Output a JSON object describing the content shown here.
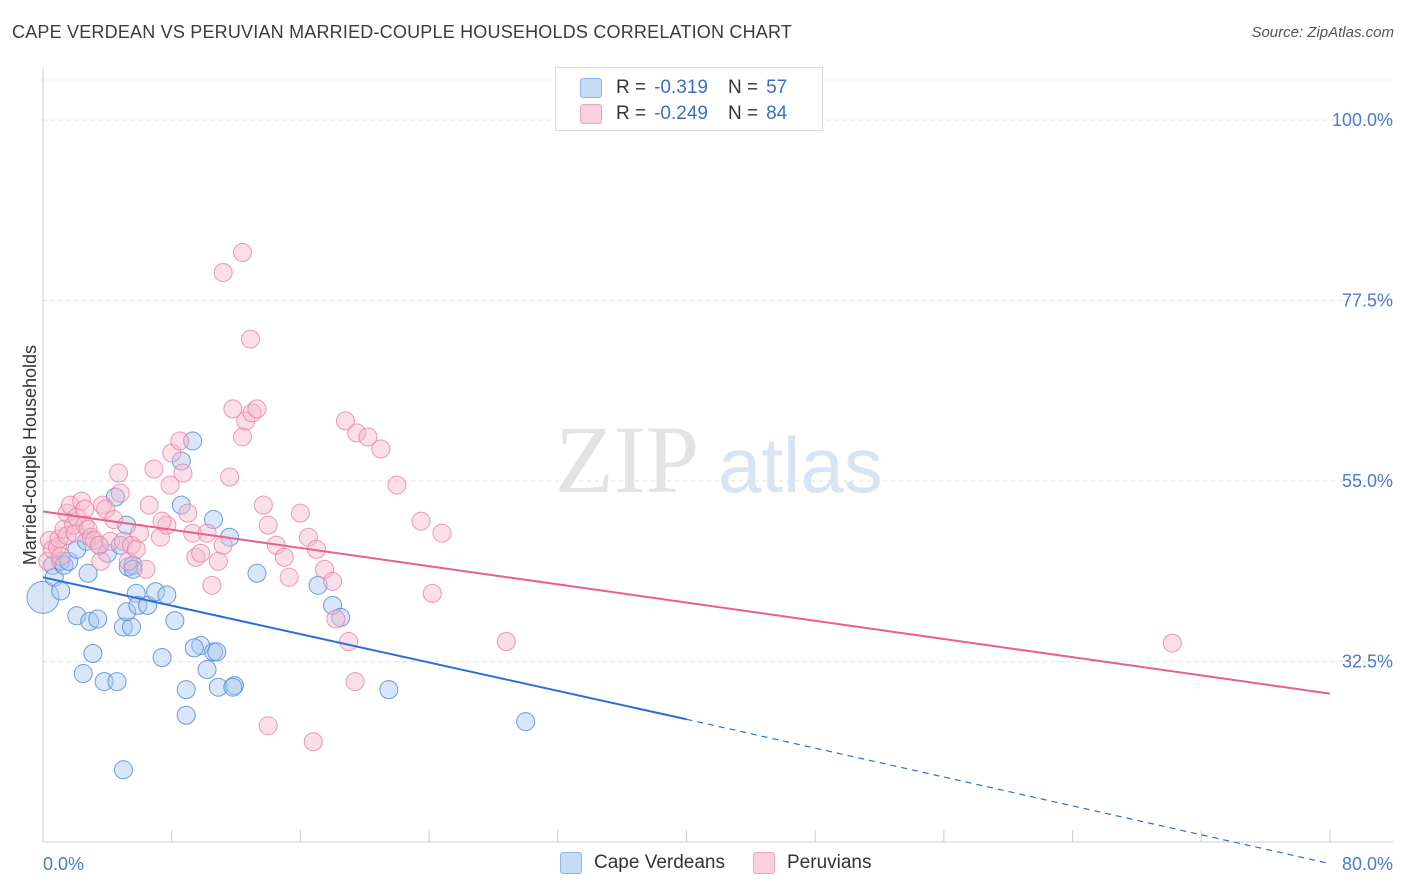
{
  "title": "CAPE VERDEAN VS PERUVIAN MARRIED-COUPLE HOUSEHOLDS CORRELATION CHART",
  "source": "Source: ZipAtlas.com",
  "watermark": {
    "zip": "ZIP",
    "atlas": "atlas"
  },
  "legend": {
    "rows": [
      {
        "r_label": "R =",
        "r_value": "-0.319",
        "n_label": "N =",
        "n_value": "57",
        "color": "#a9c8ef"
      },
      {
        "r_label": "R =",
        "r_value": "-0.249",
        "n_label": "N =",
        "n_value": "84",
        "color": "#f6b8cb"
      }
    ]
  },
  "bottom_legend": [
    {
      "label": "Cape Verdeans",
      "color": "#a9c8ef"
    },
    {
      "label": "Peruvians",
      "color": "#f6b8cb"
    }
  ],
  "chart_data": {
    "type": "scatter",
    "xlabel": "",
    "ylabel": "Married-couple Households",
    "xlim": [
      0,
      80
    ],
    "ylim": [
      10,
      105
    ],
    "x_tick_labels": [
      "0.0%",
      "80.0%"
    ],
    "y_ticks": [
      32.5,
      55.0,
      77.5,
      100.0
    ],
    "y_tick_labels": [
      "32.5%",
      "55.0%",
      "77.5%",
      "100.0%"
    ],
    "grid": true,
    "series": [
      {
        "name": "Cape Verdeans",
        "color": "#4a86d8",
        "fill": "#a9c8ef",
        "line_color": "#2d6fd0",
        "trend": {
          "x0": 0,
          "y0": 43.0,
          "x1": 40,
          "y1": 25.3,
          "dash_to_x": 80,
          "dash_to_y": 7.3
        },
        "points": [
          [
            0,
            40.5
          ],
          [
            0.6,
            44.5
          ],
          [
            0.7,
            43
          ],
          [
            1.1,
            45
          ],
          [
            1.3,
            44.5
          ],
          [
            1.1,
            41.3
          ],
          [
            1.6,
            45
          ],
          [
            2.1,
            46.5
          ],
          [
            2.1,
            38.2
          ],
          [
            2.8,
            43.5
          ],
          [
            2.5,
            31
          ],
          [
            2.9,
            37.5
          ],
          [
            3.1,
            33.5
          ],
          [
            2.7,
            47.5
          ],
          [
            3.4,
            37.8
          ],
          [
            3.8,
            30
          ],
          [
            4,
            46
          ],
          [
            4.5,
            53
          ],
          [
            3.5,
            47
          ],
          [
            5,
            36.8
          ],
          [
            4.6,
            30
          ],
          [
            4.8,
            47
          ],
          [
            5.2,
            49.5
          ],
          [
            5.5,
            36.8
          ],
          [
            5.2,
            38.7
          ],
          [
            5.3,
            44.3
          ],
          [
            5.6,
            44.5
          ],
          [
            5.8,
            41
          ],
          [
            5.9,
            39.5
          ],
          [
            5.6,
            44
          ],
          [
            6.5,
            39.5
          ],
          [
            7,
            41.2
          ],
          [
            7.4,
            33
          ],
          [
            7.7,
            40.8
          ],
          [
            8.6,
            52
          ],
          [
            8.2,
            37.6
          ],
          [
            8.9,
            29
          ],
          [
            8.9,
            25.8
          ],
          [
            8.6,
            57.5
          ],
          [
            9.3,
            60
          ],
          [
            9.8,
            34.5
          ],
          [
            9.4,
            34.2
          ],
          [
            10.6,
            33.7
          ],
          [
            10.2,
            31.5
          ],
          [
            10.8,
            33.7
          ],
          [
            10.9,
            29.3
          ],
          [
            10.6,
            50.2
          ],
          [
            11.6,
            48
          ],
          [
            11.9,
            29.5
          ],
          [
            11.8,
            29.3
          ],
          [
            13.3,
            43.5
          ],
          [
            17.1,
            42
          ],
          [
            18,
            39.5
          ],
          [
            18.5,
            38
          ],
          [
            21.5,
            29
          ],
          [
            30,
            25
          ],
          [
            5,
            19
          ]
        ]
      },
      {
        "name": "Peruvians",
        "color": "#e87fa3",
        "fill": "#f6b8cb",
        "line_color": "#e7608f",
        "trend": {
          "x0": 0,
          "y0": 51.2,
          "x1": 80,
          "y1": 28.5
        },
        "points": [
          [
            0.3,
            45
          ],
          [
            0.4,
            47.6
          ],
          [
            0.6,
            46.5
          ],
          [
            0.9,
            46.8
          ],
          [
            1,
            47.8
          ],
          [
            1.1,
            45.6
          ],
          [
            1.3,
            49
          ],
          [
            1.5,
            48.2
          ],
          [
            1.5,
            51
          ],
          [
            1.7,
            52
          ],
          [
            1.9,
            49.5
          ],
          [
            2,
            48.5
          ],
          [
            2.1,
            50.5
          ],
          [
            2.4,
            52.5
          ],
          [
            2.6,
            51.5
          ],
          [
            2.6,
            49.5
          ],
          [
            2.8,
            49
          ],
          [
            3,
            48
          ],
          [
            3.2,
            47.6
          ],
          [
            3.5,
            47
          ],
          [
            3.6,
            45
          ],
          [
            3.7,
            52
          ],
          [
            3.9,
            51.5
          ],
          [
            4.2,
            47.5
          ],
          [
            4.4,
            50.2
          ],
          [
            4.7,
            56
          ],
          [
            4.8,
            53.5
          ],
          [
            5,
            47.5
          ],
          [
            5.3,
            45
          ],
          [
            5.5,
            47
          ],
          [
            5.8,
            46.5
          ],
          [
            6,
            48.5
          ],
          [
            6.4,
            44
          ],
          [
            6.6,
            52
          ],
          [
            6.9,
            56.5
          ],
          [
            7.3,
            48
          ],
          [
            7.7,
            49.5
          ],
          [
            7.4,
            50
          ],
          [
            7.9,
            54.5
          ],
          [
            8,
            58.5
          ],
          [
            8.5,
            60
          ],
          [
            8.7,
            56
          ],
          [
            9,
            51
          ],
          [
            9.3,
            48.5
          ],
          [
            9.5,
            45.5
          ],
          [
            9.8,
            46
          ],
          [
            10.2,
            48.5
          ],
          [
            10.5,
            42
          ],
          [
            10.9,
            45
          ],
          [
            11.2,
            47
          ],
          [
            11.6,
            55.5
          ],
          [
            11.8,
            64
          ],
          [
            12.4,
            60.5
          ],
          [
            12.6,
            62.5
          ],
          [
            13,
            63.5
          ],
          [
            13.3,
            64
          ],
          [
            13.7,
            52
          ],
          [
            14,
            49.5
          ],
          [
            14.5,
            47
          ],
          [
            15,
            45.5
          ],
          [
            15.3,
            43
          ],
          [
            16,
            51
          ],
          [
            16.5,
            48
          ],
          [
            17,
            46.5
          ],
          [
            17.5,
            44
          ],
          [
            18,
            42.5
          ],
          [
            18.8,
            62.5
          ],
          [
            19.5,
            61
          ],
          [
            20.2,
            60.5
          ],
          [
            21,
            59
          ],
          [
            22,
            54.5
          ],
          [
            23.5,
            50
          ],
          [
            24.2,
            41
          ],
          [
            24.8,
            48.5
          ],
          [
            11.2,
            81
          ],
          [
            12.4,
            83.5
          ],
          [
            12.9,
            72.7
          ],
          [
            14,
            24.5
          ],
          [
            16.8,
            22.5
          ],
          [
            18.2,
            37.8
          ],
          [
            19,
            35
          ],
          [
            19.4,
            30
          ],
          [
            28.8,
            35
          ],
          [
            70.2,
            34.8
          ]
        ]
      }
    ]
  }
}
